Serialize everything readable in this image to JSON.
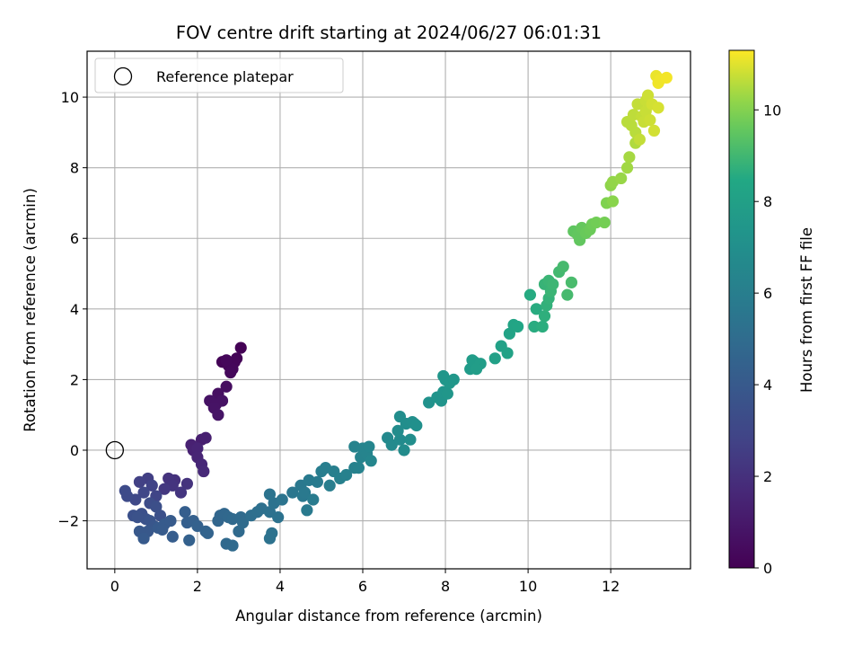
{
  "chart_data": {
    "type": "scatter",
    "title": "FOV centre drift starting at 2024/06/27 06:01:31",
    "xlabel": "Angular distance from reference (arcmin)",
    "ylabel": "Rotation from reference (arcmin)",
    "xlim": [
      -0.67,
      13.93
    ],
    "ylim": [
      -3.36,
      11.3
    ],
    "x_ticks": [
      0,
      2,
      4,
      6,
      8,
      10,
      12
    ],
    "x_tick_labels": [
      "0",
      "2",
      "4",
      "6",
      "8",
      "10",
      "12"
    ],
    "y_ticks": [
      -2,
      0,
      2,
      4,
      6,
      8,
      10
    ],
    "y_tick_labels": [
      "−2",
      "0",
      "2",
      "4",
      "6",
      "8",
      "10"
    ],
    "grid": true,
    "legend": {
      "placement": "upper-left",
      "entries": [
        {
          "label": "Reference platepar",
          "marker": "open-circle",
          "x": 0,
          "y": 0
        }
      ]
    },
    "colorbar": {
      "label": "Hours from first FF file",
      "range": [
        0,
        11.3
      ],
      "ticks": [
        0,
        2,
        4,
        6,
        8,
        10
      ],
      "tick_labels": [
        "0",
        "2",
        "4",
        "6",
        "8",
        "10"
      ],
      "colormap": "viridis"
    },
    "series": [
      {
        "points": [
          [
            2.6,
            2.5,
            0.1
          ],
          [
            2.75,
            2.4,
            0.2
          ],
          [
            2.85,
            2.3,
            0.25
          ],
          [
            2.95,
            2.6,
            0.15
          ],
          [
            3.05,
            2.9,
            0.05
          ],
          [
            2.8,
            2.2,
            0.3
          ],
          [
            2.9,
            2.5,
            0.2
          ],
          [
            2.7,
            2.55,
            0.25
          ],
          [
            2.5,
            1.6,
            0.6
          ],
          [
            2.6,
            1.4,
            0.7
          ],
          [
            2.4,
            1.2,
            0.75
          ],
          [
            2.5,
            1.0,
            0.8
          ],
          [
            2.3,
            1.4,
            0.7
          ],
          [
            2.7,
            1.8,
            0.5
          ],
          [
            2.45,
            1.3,
            0.7
          ],
          [
            2.1,
            0.3,
            1.2
          ],
          [
            2.2,
            0.35,
            1.25
          ],
          [
            1.9,
            0.0,
            1.4
          ],
          [
            2.0,
            -0.2,
            1.5
          ],
          [
            2.1,
            -0.4,
            1.6
          ],
          [
            2.15,
            -0.6,
            1.7
          ],
          [
            1.85,
            0.15,
            1.35
          ],
          [
            2.0,
            0.05,
            1.45
          ],
          [
            1.3,
            -0.8,
            2.1
          ],
          [
            1.45,
            -0.85,
            2.0
          ],
          [
            1.2,
            -1.1,
            2.3
          ],
          [
            1.6,
            -1.2,
            2.2
          ],
          [
            1.75,
            -0.95,
            2.1
          ],
          [
            1.4,
            -1.0,
            2.15
          ],
          [
            0.6,
            -0.9,
            2.7
          ],
          [
            0.8,
            -0.8,
            2.6
          ],
          [
            0.9,
            -1.0,
            2.8
          ],
          [
            1.0,
            -1.3,
            2.9
          ],
          [
            0.7,
            -1.2,
            3.0
          ],
          [
            0.5,
            -1.4,
            3.1
          ],
          [
            0.3,
            -1.3,
            3.2
          ],
          [
            0.25,
            -1.15,
            3.2
          ],
          [
            0.85,
            -1.5,
            3.3
          ],
          [
            0.65,
            -1.8,
            3.5
          ],
          [
            0.75,
            -1.95,
            3.6
          ],
          [
            0.55,
            -1.9,
            3.6
          ],
          [
            0.85,
            -2.0,
            3.7
          ],
          [
            0.45,
            -1.85,
            3.5
          ],
          [
            1.0,
            -1.6,
            3.4
          ],
          [
            1.1,
            -1.85,
            3.5
          ],
          [
            0.95,
            -2.15,
            3.8
          ],
          [
            0.8,
            -2.3,
            3.9
          ],
          [
            0.7,
            -2.5,
            4.0
          ],
          [
            0.6,
            -2.3,
            3.9
          ],
          [
            1.05,
            -2.2,
            4.0
          ],
          [
            1.2,
            -2.1,
            4.05
          ],
          [
            1.15,
            -2.25,
            4.1
          ],
          [
            1.35,
            -2.0,
            4.1
          ],
          [
            1.4,
            -2.45,
            4.2
          ],
          [
            1.7,
            -1.75,
            4.25
          ],
          [
            1.75,
            -2.05,
            4.3
          ],
          [
            1.9,
            -2.0,
            4.35
          ],
          [
            1.8,
            -2.55,
            4.4
          ],
          [
            2.2,
            -2.3,
            4.5
          ],
          [
            2.25,
            -2.35,
            4.55
          ],
          [
            2.0,
            -2.15,
            4.4
          ],
          [
            2.55,
            -1.85,
            4.7
          ],
          [
            2.65,
            -1.8,
            4.75
          ],
          [
            2.75,
            -1.9,
            4.8
          ],
          [
            2.5,
            -2.0,
            4.7
          ],
          [
            2.85,
            -1.95,
            4.85
          ],
          [
            3.05,
            -1.9,
            4.9
          ],
          [
            3.0,
            -2.3,
            4.9
          ],
          [
            2.7,
            -2.65,
            4.85
          ],
          [
            2.85,
            -2.7,
            4.9
          ],
          [
            3.1,
            -2.05,
            4.95
          ],
          [
            3.3,
            -1.85,
            5.1
          ],
          [
            3.45,
            -1.75,
            5.15
          ],
          [
            3.55,
            -1.65,
            5.2
          ],
          [
            3.75,
            -1.75,
            5.25
          ],
          [
            3.8,
            -2.35,
            5.3
          ],
          [
            3.75,
            -2.5,
            5.3
          ],
          [
            3.95,
            -1.9,
            5.35
          ],
          [
            3.85,
            -1.5,
            5.35
          ],
          [
            3.75,
            -1.25,
            5.4
          ],
          [
            4.05,
            -1.4,
            5.45
          ],
          [
            4.3,
            -1.2,
            5.55
          ],
          [
            4.5,
            -1.0,
            5.65
          ],
          [
            4.6,
            -1.2,
            5.7
          ],
          [
            4.7,
            -0.85,
            5.75
          ],
          [
            4.8,
            -1.4,
            5.8
          ],
          [
            4.65,
            -1.7,
            5.75
          ],
          [
            4.55,
            -1.3,
            5.65
          ],
          [
            4.9,
            -0.9,
            5.85
          ],
          [
            5.0,
            -0.6,
            5.95
          ],
          [
            5.1,
            -0.5,
            6.0
          ],
          [
            5.3,
            -0.6,
            6.05
          ],
          [
            5.45,
            -0.8,
            6.1
          ],
          [
            5.6,
            -0.7,
            6.15
          ],
          [
            5.2,
            -1.0,
            6.0
          ],
          [
            5.8,
            -0.5,
            6.2
          ],
          [
            5.9,
            -0.5,
            6.25
          ],
          [
            5.8,
            0.1,
            6.3
          ],
          [
            6.0,
            0.05,
            6.35
          ],
          [
            6.1,
            -0.1,
            6.35
          ],
          [
            6.15,
            0.1,
            6.4
          ],
          [
            6.2,
            -0.3,
            6.45
          ],
          [
            5.95,
            -0.2,
            6.3
          ],
          [
            6.6,
            0.35,
            6.65
          ],
          [
            6.7,
            0.15,
            6.7
          ],
          [
            6.85,
            0.55,
            6.8
          ],
          [
            6.9,
            0.3,
            6.75
          ],
          [
            7.0,
            0.0,
            6.85
          ],
          [
            6.9,
            0.95,
            6.9
          ],
          [
            7.05,
            0.75,
            6.95
          ],
          [
            7.2,
            0.8,
            7.0
          ],
          [
            7.15,
            0.3,
            6.95
          ],
          [
            7.3,
            0.7,
            7.05
          ],
          [
            7.25,
            0.75,
            7.0
          ],
          [
            7.6,
            1.35,
            7.2
          ],
          [
            7.8,
            1.5,
            7.3
          ],
          [
            7.9,
            1.4,
            7.3
          ],
          [
            7.95,
            1.65,
            7.35
          ],
          [
            8.0,
            2.0,
            7.4
          ],
          [
            8.1,
            1.9,
            7.45
          ],
          [
            8.2,
            2.0,
            7.5
          ],
          [
            7.95,
            2.1,
            7.4
          ],
          [
            8.05,
            1.6,
            7.4
          ],
          [
            8.6,
            2.3,
            7.7
          ],
          [
            8.7,
            2.5,
            7.75
          ],
          [
            8.85,
            2.45,
            7.8
          ],
          [
            8.65,
            2.55,
            7.75
          ],
          [
            8.75,
            2.3,
            7.8
          ],
          [
            9.2,
            2.6,
            8.0
          ],
          [
            9.35,
            2.95,
            8.05
          ],
          [
            9.5,
            2.75,
            8.1
          ],
          [
            9.55,
            3.3,
            8.2
          ],
          [
            9.65,
            3.55,
            8.25
          ],
          [
            9.75,
            3.5,
            8.3
          ],
          [
            10.05,
            4.4,
            8.55
          ],
          [
            10.2,
            4.0,
            8.6
          ],
          [
            10.4,
            3.8,
            8.7
          ],
          [
            10.45,
            4.1,
            8.75
          ],
          [
            10.5,
            4.3,
            8.8
          ],
          [
            10.35,
            3.5,
            8.65
          ],
          [
            10.15,
            3.5,
            8.6
          ],
          [
            10.4,
            4.7,
            8.85
          ],
          [
            10.5,
            4.8,
            8.9
          ],
          [
            10.55,
            4.5,
            8.9
          ],
          [
            10.6,
            4.7,
            8.95
          ],
          [
            10.75,
            5.05,
            9.05
          ],
          [
            10.85,
            5.2,
            9.1
          ],
          [
            10.95,
            4.4,
            9.1
          ],
          [
            11.05,
            4.75,
            9.15
          ],
          [
            11.1,
            6.2,
            9.5
          ],
          [
            11.2,
            6.1,
            9.55
          ],
          [
            11.3,
            6.3,
            9.6
          ],
          [
            11.25,
            5.95,
            9.55
          ],
          [
            11.4,
            6.15,
            9.65
          ],
          [
            11.5,
            6.25,
            9.7
          ],
          [
            11.55,
            6.4,
            9.75
          ],
          [
            11.65,
            6.45,
            9.8
          ],
          [
            11.85,
            6.45,
            9.85
          ],
          [
            11.9,
            7.0,
            10.0
          ],
          [
            12.05,
            7.05,
            10.1
          ],
          [
            12.0,
            7.5,
            10.15
          ],
          [
            12.05,
            7.6,
            10.2
          ],
          [
            12.25,
            7.7,
            10.25
          ],
          [
            12.4,
            8.0,
            10.35
          ],
          [
            12.45,
            8.3,
            10.4
          ],
          [
            12.6,
            8.7,
            10.5
          ],
          [
            12.4,
            9.3,
            10.6
          ],
          [
            12.5,
            9.2,
            10.6
          ],
          [
            12.55,
            9.5,
            10.65
          ],
          [
            12.65,
            9.8,
            10.7
          ],
          [
            12.75,
            9.45,
            10.7
          ],
          [
            12.85,
            9.9,
            10.75
          ],
          [
            12.9,
            10.05,
            10.8
          ],
          [
            12.8,
            9.3,
            10.75
          ],
          [
            12.95,
            9.35,
            10.8
          ],
          [
            13.05,
            9.05,
            10.85
          ],
          [
            12.7,
            8.8,
            10.7
          ],
          [
            13.0,
            9.8,
            10.85
          ],
          [
            13.15,
            9.7,
            10.9
          ],
          [
            12.6,
            9.0,
            10.6
          ],
          [
            12.85,
            9.6,
            10.75
          ],
          [
            13.1,
            10.6,
            11.1
          ],
          [
            13.2,
            10.5,
            11.15
          ],
          [
            13.35,
            10.55,
            11.2
          ],
          [
            13.15,
            10.4,
            11.15
          ]
        ]
      }
    ]
  }
}
